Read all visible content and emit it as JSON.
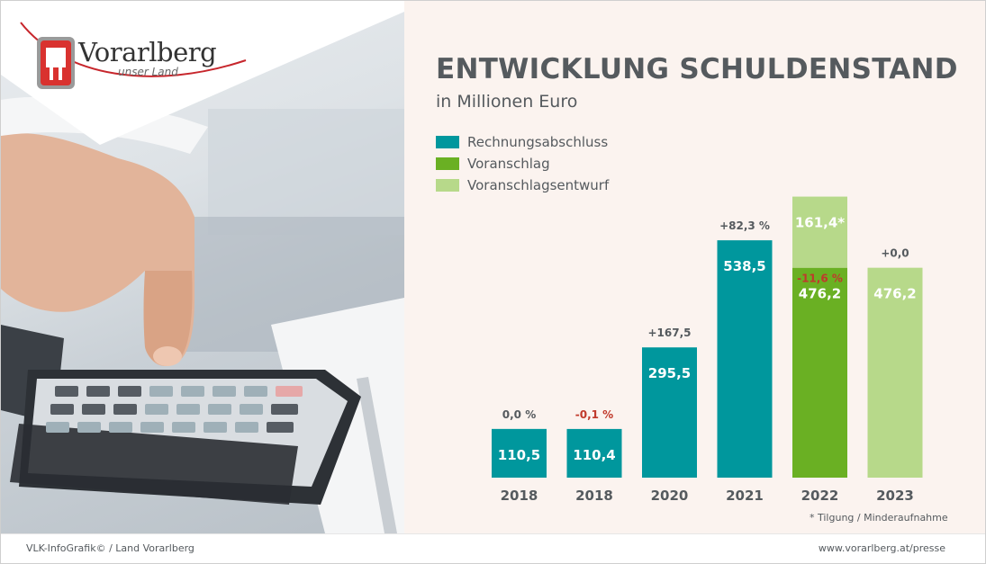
{
  "branding": {
    "logo_name": "Vorarlberg",
    "logo_tagline": "unser Land"
  },
  "footer": {
    "left_text": "VLK-InfoGrafik© / Land Vorarlberg",
    "right_text": "www.vorarlberg.at/presse"
  },
  "colors": {
    "rechnungsabschluss": "#00979d",
    "voranschlag": "#6ab023",
    "voranschlagsentwurf": "#b7d98a",
    "negative_label": "#c0392b",
    "text": "#555a5e"
  },
  "chart_data": {
    "type": "bar",
    "title": "ENTWICKLUNG SCHULDENSTAND",
    "subtitle": "in Millionen Euro",
    "ylim": [
      0,
      700
    ],
    "legend": [
      {
        "name": "Rechnungsabschluss",
        "color": "#00979d"
      },
      {
        "name": "Voranschlag",
        "color": "#6ab023"
      },
      {
        "name": "Voranschlagsentwurf",
        "color": "#b7d98a"
      }
    ],
    "legend_position": "top-left",
    "grid": false,
    "categories": [
      "2018",
      "2018",
      "2020",
      "2021",
      "2022",
      "2023"
    ],
    "bars": [
      {
        "category": "2018",
        "segments": [
          {
            "series": "Rechnungsabschluss",
            "value": 110.5,
            "label": "110,5"
          }
        ],
        "annotation": "0,0 %",
        "annotation_negative": false
      },
      {
        "category": "2018",
        "segments": [
          {
            "series": "Rechnungsabschluss",
            "value": 110.4,
            "label": "110,4"
          }
        ],
        "annotation": "-0,1 %",
        "annotation_negative": true
      },
      {
        "category": "2020",
        "segments": [
          {
            "series": "Rechnungsabschluss",
            "value": 295.5,
            "label": "295,5"
          }
        ],
        "annotation": "+167,5",
        "annotation_negative": false
      },
      {
        "category": "2021",
        "segments": [
          {
            "series": "Rechnungsabschluss",
            "value": 538.5,
            "label": "538,5"
          }
        ],
        "annotation": "+82,3 %",
        "annotation_negative": false
      },
      {
        "category": "2022",
        "segments": [
          {
            "series": "Voranschlag",
            "value": 476.2,
            "label": "476,2"
          },
          {
            "series": "Voranschlagsentwurf",
            "value": 161.4,
            "label": "161,4*"
          }
        ],
        "annotation": "-11,6 %",
        "annotation_negative": true,
        "annotation_inside": true
      },
      {
        "category": "2023",
        "segments": [
          {
            "series": "Voranschlagsentwurf",
            "value": 476.2,
            "label": "476,2"
          }
        ],
        "annotation": "+0,0",
        "annotation_negative": false
      }
    ],
    "footnote": "* Tilgung / Minderaufnahme"
  }
}
